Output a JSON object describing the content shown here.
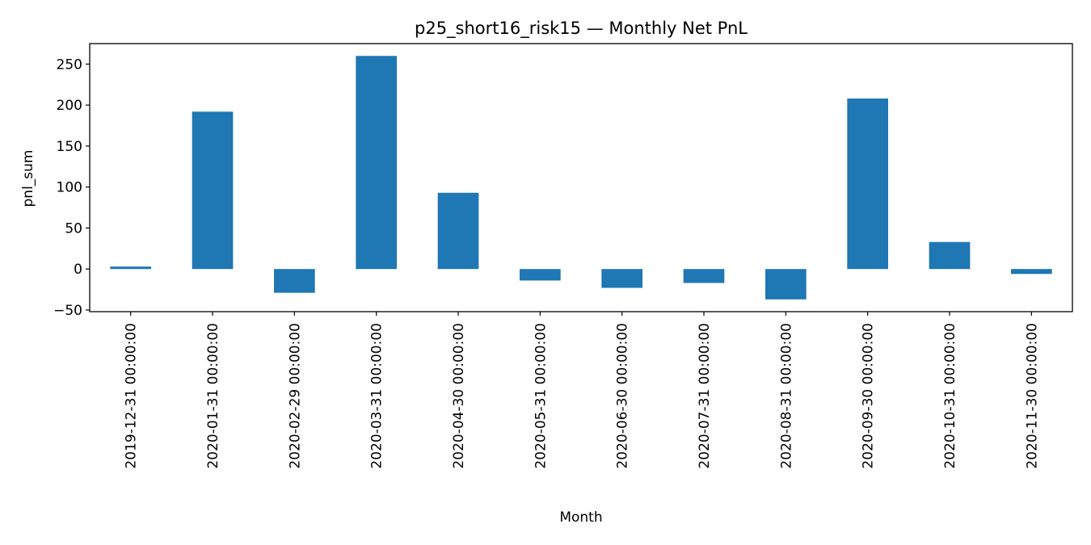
{
  "chart_data": {
    "type": "bar",
    "title": "p25_short16_risk15 — Monthly Net PnL",
    "xlabel": "Month",
    "ylabel": "pnl_sum",
    "categories": [
      "2019-12-31 00:00:00",
      "2020-01-31 00:00:00",
      "2020-02-29 00:00:00",
      "2020-03-31 00:00:00",
      "2020-04-30 00:00:00",
      "2020-05-31 00:00:00",
      "2020-06-30 00:00:00",
      "2020-07-31 00:00:00",
      "2020-08-31 00:00:00",
      "2020-09-30 00:00:00",
      "2020-10-31 00:00:00",
      "2020-11-30 00:00:00"
    ],
    "values": [
      3,
      192,
      -29,
      260,
      93,
      -14,
      -23,
      -17,
      -37,
      208,
      33,
      -6
    ],
    "ylim": [
      -52,
      275
    ],
    "yticks": [
      -50,
      0,
      50,
      100,
      150,
      200,
      250
    ],
    "bar_color": "#1f77b4",
    "grid": false,
    "legend": "none"
  }
}
